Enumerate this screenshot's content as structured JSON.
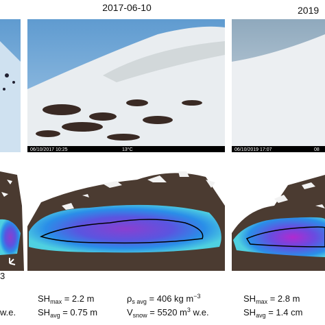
{
  "header": {
    "dates": [
      "2017-06-10",
      "2019"
    ]
  },
  "photos": [
    {
      "stamp": "06/10/2017  10:25",
      "temp": "13°C"
    },
    {
      "stamp": "06/10/2019  17:07",
      "temp": "08"
    }
  ],
  "left_panel": {
    "north": "N",
    "unit_fragment": "3",
    "we_fragment": "w.e."
  },
  "stats": [
    {
      "rows": [
        [
          {
            "base": "SH",
            "sub": "max",
            "value": " = 2.2 m"
          },
          {
            "base": "ρ",
            "sub": "s avg",
            "value": " = 406 kg m",
            "sup": "−3"
          }
        ],
        [
          {
            "base": "SH",
            "sub": "avg",
            "value": " = 0.75 m"
          },
          {
            "base": "V",
            "sub": "snow",
            "value": " = 5520 m",
            "sup": "3",
            "tail": " w.e."
          }
        ]
      ]
    },
    {
      "rows": [
        [
          {
            "base": "SH",
            "sub": "max",
            "value": " = 2.8 m"
          }
        ],
        [
          {
            "base": "SH",
            "sub": "avg",
            "value": " = 1.4 cm"
          }
        ]
      ]
    }
  ]
}
